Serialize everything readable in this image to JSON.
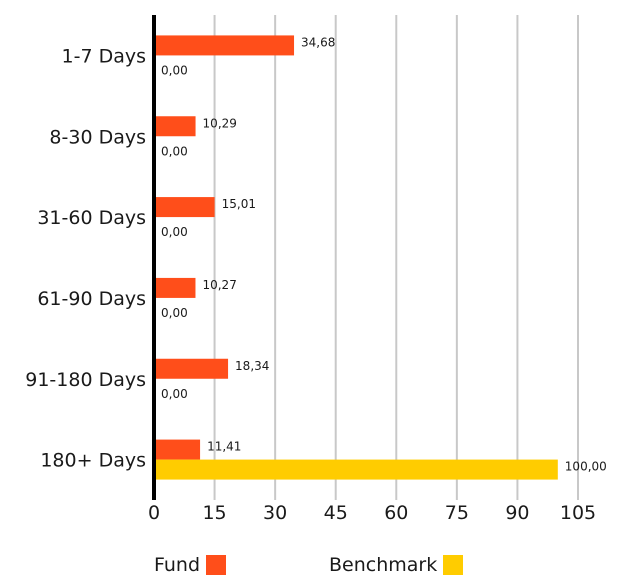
{
  "chart_data": {
    "type": "bar",
    "orientation": "horizontal",
    "categories": [
      "1-7 Days",
      "8-30 Days",
      "31-60 Days",
      "61-90 Days",
      "91-180 Days",
      "180+ Days"
    ],
    "series": [
      {
        "name": "Fund",
        "color": "#ff4e1a",
        "values": [
          34.68,
          10.29,
          15.01,
          10.27,
          18.34,
          11.41
        ],
        "labels": [
          "34,68",
          "10,29",
          "15,01",
          "10,27",
          "18,34",
          "11,41"
        ]
      },
      {
        "name": "Benchmark",
        "color": "#ffcc00",
        "values": [
          0,
          0,
          0,
          0,
          0,
          100
        ],
        "labels": [
          "0,00",
          "0,00",
          "0,00",
          "0,00",
          "0,00",
          "100,00"
        ]
      }
    ],
    "xlim": [
      0,
      105
    ],
    "xticks": [
      0,
      15,
      30,
      45,
      60,
      75,
      90,
      105
    ],
    "grid": true,
    "legend_position": "bottom"
  },
  "legend": {
    "fund_label": "Fund",
    "benchmark_label": "Benchmark"
  }
}
